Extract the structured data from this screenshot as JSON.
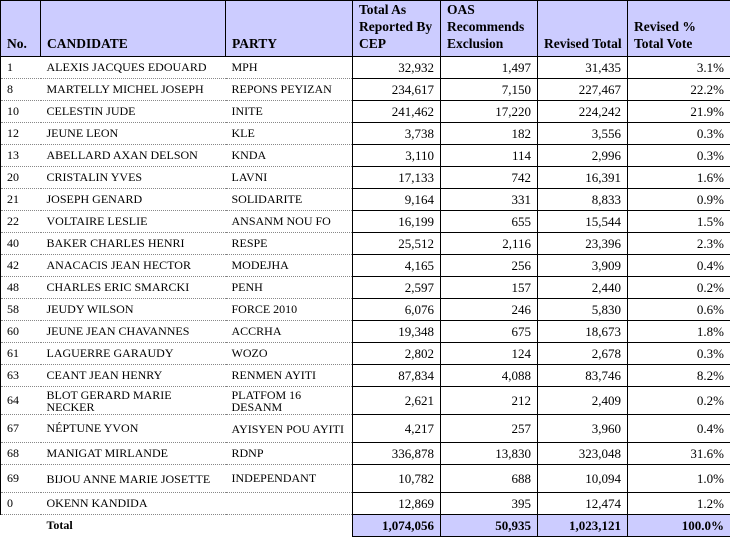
{
  "headers": [
    "No.",
    "CANDIDATE",
    "PARTY",
    "Total As Reported By CEP",
    "OAS Recommends Exclusion",
    "Revised Total",
    "Revised % Total Vote"
  ],
  "rows": [
    {
      "no": "1",
      "candidate": "ALEXIS JACQUES EDOUARD",
      "party": "MPH",
      "cep": "32,932",
      "excl": "1,497",
      "revised": "31,435",
      "pct": "3.1%"
    },
    {
      "no": "8",
      "candidate": "MARTELLY MICHEL JOSEPH",
      "party": "REPONS PEYIZAN",
      "cep": "234,617",
      "excl": "7,150",
      "revised": "227,467",
      "pct": "22.2%"
    },
    {
      "no": "10",
      "candidate": "CELESTIN JUDE",
      "party": "INITE",
      "cep": "241,462",
      "excl": "17,220",
      "revised": "224,242",
      "pct": "21.9%"
    },
    {
      "no": "12",
      "candidate": "JEUNE LEON",
      "party": "KLE",
      "cep": "3,738",
      "excl": "182",
      "revised": "3,556",
      "pct": "0.3%"
    },
    {
      "no": "13",
      "candidate": "ABELLARD AXAN DELSON",
      "party": "KNDA",
      "cep": "3,110",
      "excl": "114",
      "revised": "2,996",
      "pct": "0.3%"
    },
    {
      "no": "20",
      "candidate": "CRISTALIN YVES",
      "party": "LAVNI",
      "cep": "17,133",
      "excl": "742",
      "revised": "16,391",
      "pct": "1.6%"
    },
    {
      "no": "21",
      "candidate": "JOSEPH GENARD",
      "party": "SOLIDARITE",
      "cep": "9,164",
      "excl": "331",
      "revised": "8,833",
      "pct": "0.9%"
    },
    {
      "no": "22",
      "candidate": "VOLTAIRE LESLIE",
      "party": "ANSANM NOU FO",
      "cep": "16,199",
      "excl": "655",
      "revised": "15,544",
      "pct": "1.5%"
    },
    {
      "no": "40",
      "candidate": "BAKER CHARLES HENRI",
      "party": "RESPE",
      "cep": "25,512",
      "excl": "2,116",
      "revised": "23,396",
      "pct": "2.3%"
    },
    {
      "no": "42",
      "candidate": "ANACACIS JEAN HECTOR",
      "party": "MODEJHA",
      "cep": "4,165",
      "excl": "256",
      "revised": "3,909",
      "pct": "0.4%"
    },
    {
      "no": "48",
      "candidate": "CHARLES ERIC SMARCKI",
      "party": "PENH",
      "cep": "2,597",
      "excl": "157",
      "revised": "2,440",
      "pct": "0.2%"
    },
    {
      "no": "58",
      "candidate": "JEUDY WILSON",
      "party": "FORCE 2010",
      "cep": "6,076",
      "excl": "246",
      "revised": "5,830",
      "pct": "0.6%"
    },
    {
      "no": "60",
      "candidate": "JEUNE JEAN CHAVANNES",
      "party": "ACCRHA",
      "cep": "19,348",
      "excl": "675",
      "revised": "18,673",
      "pct": "1.8%"
    },
    {
      "no": "61",
      "candidate": "LAGUERRE GARAUDY",
      "party": "WOZO",
      "cep": "2,802",
      "excl": "124",
      "revised": "2,678",
      "pct": "0.3%"
    },
    {
      "no": "63",
      "candidate": "CEANT JEAN HENRY",
      "party": "RENMEN AYITI",
      "cep": "87,834",
      "excl": "4,088",
      "revised": "83,746",
      "pct": "8.2%"
    },
    {
      "no": "64",
      "candidate": "BLOT GERARD MARIE NECKER",
      "party": "PLATFOM 16 DESANM",
      "cep": "2,621",
      "excl": "212",
      "revised": "2,409",
      "pct": "0.2%"
    },
    {
      "no": "67",
      "candidate": "NÉPTUNE YVON",
      "party": "AYISYEN POU AYITI",
      "cep": "4,217",
      "excl": "257",
      "revised": "3,960",
      "pct": "0.4%"
    },
    {
      "no": "68",
      "candidate": "MANIGAT MIRLANDE",
      "party": "RDNP",
      "cep": "336,878",
      "excl": "13,830",
      "revised": "323,048",
      "pct": "31.6%"
    },
    {
      "no": "69",
      "candidate": "BIJOU ANNE MARIE JOSETTE",
      "party": "INDEPENDANT",
      "cep": "10,782",
      "excl": "688",
      "revised": "10,094",
      "pct": "1.0%"
    },
    {
      "no": "0",
      "candidate": "OKENN KANDIDA",
      "party": "",
      "cep": "12,869",
      "excl": "395",
      "revised": "12,474",
      "pct": "1.2%"
    }
  ],
  "total": {
    "label": "Total",
    "cep": "1,074,056",
    "excl": "50,935",
    "revised": "1,023,121",
    "pct": "100.0%"
  },
  "colors": {
    "header_bg": "#ccccff"
  }
}
